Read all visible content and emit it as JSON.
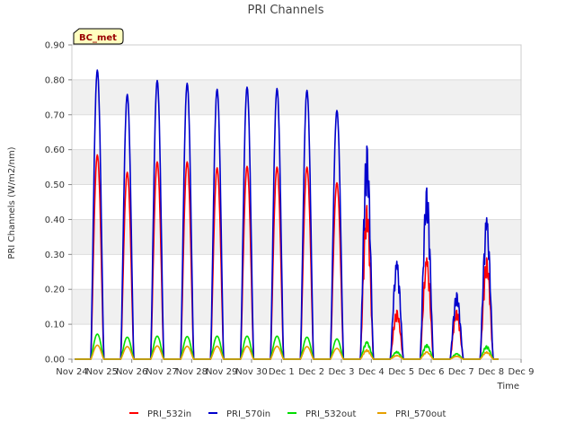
{
  "chart_data": {
    "type": "line",
    "title": "PRI Channels",
    "xlabel": "Time",
    "ylabel": "PRI Channels (W/m2/nm)",
    "site_label": "BC_met",
    "ylim": [
      0,
      0.9
    ],
    "yticks": [
      0.0,
      0.1,
      0.2,
      0.3,
      0.4,
      0.5,
      0.6,
      0.7,
      0.8,
      0.9
    ],
    "ytick_labels": [
      "0.00",
      "0.10",
      "0.20",
      "0.30",
      "0.40",
      "0.50",
      "0.60",
      "0.70",
      "0.80",
      "0.90"
    ],
    "xlim": [
      0,
      15
    ],
    "xtick_labels": [
      "Nov 24",
      "Nov 25",
      "Nov 26",
      "Nov 27",
      "Nov 28",
      "Nov 29",
      "Nov 30",
      "Dec 1",
      "Dec 2",
      "Dec 3",
      "Dec 4",
      "Dec 5",
      "Dec 6",
      "Dec 7",
      "Dec 8",
      "Dec 9"
    ],
    "x_unit": "days since Nov 24",
    "peak_days": [
      0.85,
      1.85,
      2.85,
      3.85,
      4.85,
      5.85,
      6.85,
      7.85,
      8.85,
      9.85,
      10.85,
      11.85,
      12.85,
      13.85
    ],
    "series": [
      {
        "name": "PRI_532in",
        "color": "#ff0000",
        "daily_peaks": [
          0.585,
          0.535,
          0.565,
          0.565,
          0.548,
          0.552,
          0.55,
          0.55,
          0.505,
          0.44,
          0.14,
          0.29,
          0.14,
          0.29
        ]
      },
      {
        "name": "PRI_570in",
        "color": "#0000cc",
        "daily_peaks": [
          0.828,
          0.758,
          0.798,
          0.79,
          0.773,
          0.779,
          0.775,
          0.77,
          0.712,
          0.61,
          0.28,
          0.49,
          0.19,
          0.405
        ]
      },
      {
        "name": "PRI_532out",
        "color": "#00dd00",
        "daily_peaks": [
          0.072,
          0.063,
          0.066,
          0.065,
          0.066,
          0.066,
          0.066,
          0.063,
          0.058,
          0.05,
          0.022,
          0.042,
          0.016,
          0.038
        ]
      },
      {
        "name": "PRI_570out",
        "color": "#e6a000",
        "daily_peaks": [
          0.04,
          0.036,
          0.038,
          0.037,
          0.037,
          0.037,
          0.037,
          0.036,
          0.031,
          0.027,
          0.011,
          0.021,
          0.009,
          0.021
        ]
      }
    ],
    "legend_position": "bottom-center",
    "grid": true
  }
}
